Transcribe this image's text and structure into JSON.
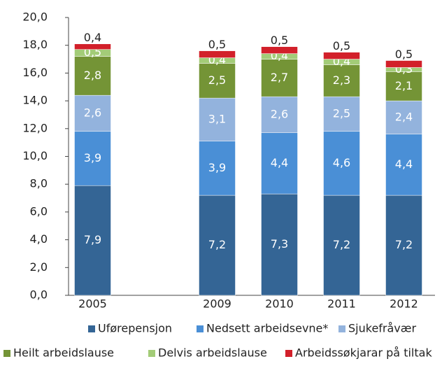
{
  "chart_data": {
    "type": "stacked-bar",
    "categories": [
      "2005",
      null,
      "2009",
      "2010",
      "2011",
      "2012"
    ],
    "series": [
      {
        "name": "Uførepensjon",
        "color": "#346595",
        "values": [
          7.9,
          null,
          7.2,
          7.3,
          7.2,
          7.2
        ],
        "value_labels": [
          "7,9",
          null,
          "7,2",
          "7,3",
          "7,2",
          "7,2"
        ]
      },
      {
        "name": "Nedsett arbeidsevne*",
        "color": "#4a8fd6",
        "values": [
          3.9,
          null,
          3.9,
          4.4,
          4.6,
          4.4
        ],
        "value_labels": [
          "3,9",
          null,
          "3,9",
          "4,4",
          "4,6",
          "4,4"
        ]
      },
      {
        "name": "Sjukefråvær",
        "color": "#93b3dd",
        "values": [
          2.6,
          null,
          3.1,
          2.6,
          2.5,
          2.4
        ],
        "value_labels": [
          "2,6",
          null,
          "3,1",
          "2,6",
          "2,5",
          "2,4"
        ]
      },
      {
        "name": "Heilt arbeidslause",
        "color": "#749436",
        "values": [
          2.8,
          null,
          2.5,
          2.7,
          2.3,
          2.1
        ],
        "value_labels": [
          "2,8",
          null,
          "2,5",
          "2,7",
          "2,3",
          "2,1"
        ]
      },
      {
        "name": "Delvis arbeidslause",
        "color": "#a3cc78",
        "values": [
          0.5,
          null,
          0.4,
          0.4,
          0.4,
          0.3
        ],
        "value_labels": [
          "0,5",
          null,
          "0,4",
          "0,4",
          "0,4",
          "0,3"
        ]
      },
      {
        "name": "Arbeidssøkjarar på tiltak",
        "color": "#d2202a",
        "values": [
          0.4,
          null,
          0.5,
          0.5,
          0.5,
          0.5
        ],
        "value_labels": [
          "0,4",
          null,
          "0,5",
          "0,5",
          "0,5",
          "0,5"
        ]
      }
    ],
    "ylim": [
      0,
      20
    ],
    "yticks": [
      {
        "value": 0,
        "label": "0,0"
      },
      {
        "value": 2,
        "label": "2,0"
      },
      {
        "value": 4,
        "label": "4,0"
      },
      {
        "value": 6,
        "label": "6,0"
      },
      {
        "value": 8,
        "label": "8,0"
      },
      {
        "value": 10,
        "label": "10,0"
      },
      {
        "value": 12,
        "label": "12,0"
      },
      {
        "value": 14,
        "label": "14,0"
      },
      {
        "value": 16,
        "label": "16,0"
      },
      {
        "value": 18,
        "label": "18,0"
      },
      {
        "value": 20,
        "label": "20,0"
      }
    ],
    "legend": "bottom"
  }
}
